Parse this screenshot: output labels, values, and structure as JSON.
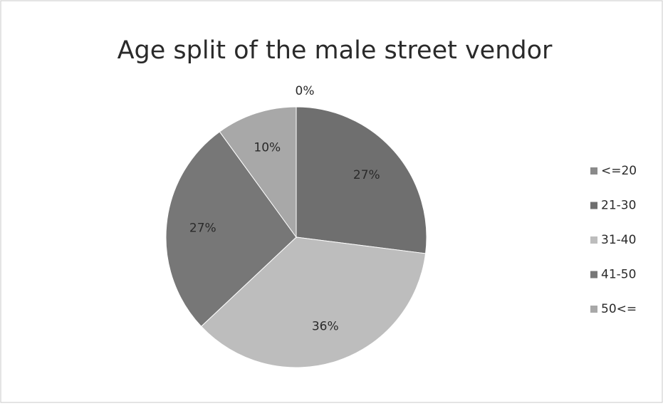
{
  "chart_data": {
    "type": "pie",
    "title": "Age split of the male street vendor",
    "categories": [
      "<=20",
      "21-30",
      "31-40",
      "41-50",
      "50<="
    ],
    "values": [
      0,
      27,
      36,
      27,
      10
    ],
    "value_labels": [
      "0%",
      "27%",
      "36%",
      "27%",
      "10%"
    ],
    "colors": [
      "#8a8a8a",
      "#6f6f6f",
      "#bdbdbd",
      "#777777",
      "#a8a8a8"
    ],
    "legend": "right"
  }
}
